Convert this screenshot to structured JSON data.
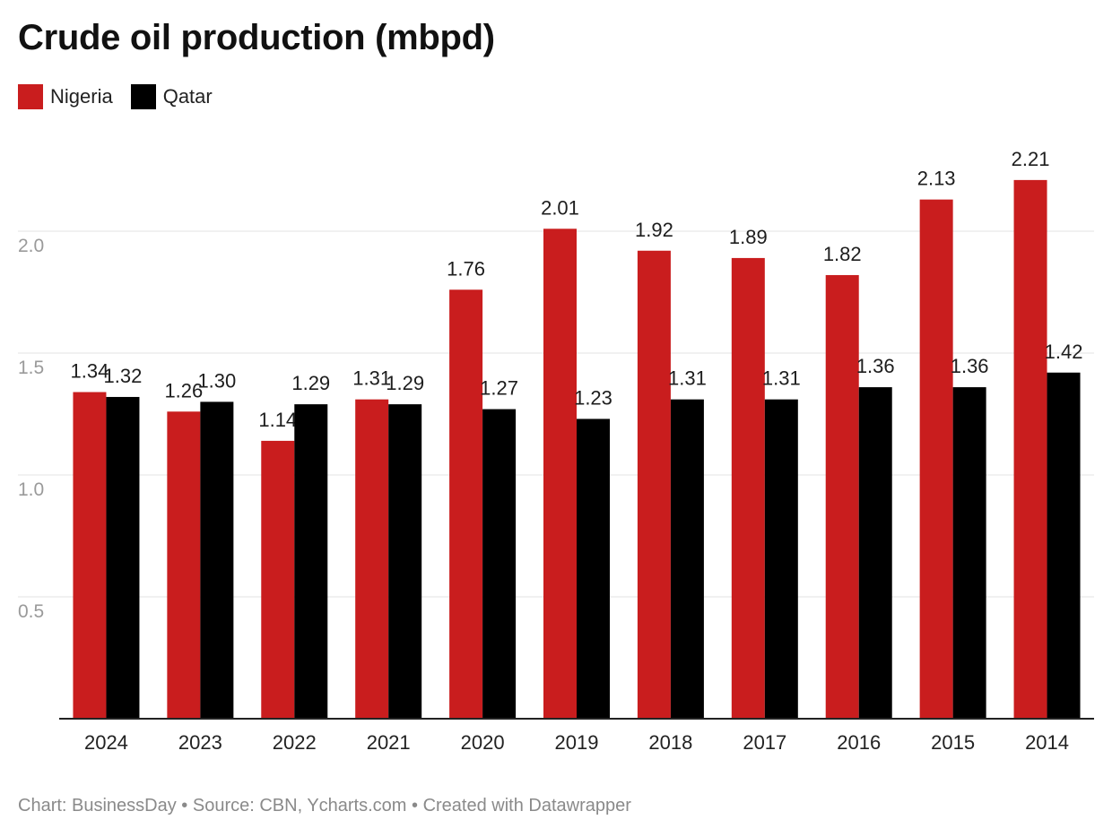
{
  "title": "Crude oil production (mbpd)",
  "legend": [
    {
      "name": "Nigeria",
      "color": "#c91d1e"
    },
    {
      "name": "Qatar",
      "color": "#000000"
    }
  ],
  "footer": "Chart: BusinessDay • Source: CBN, Ycharts.com • Created with Datawrapper",
  "chart_data": {
    "type": "bar",
    "title": "Crude oil production (mbpd)",
    "xlabel": "",
    "ylabel": "",
    "categories": [
      "2024",
      "2023",
      "2022",
      "2021",
      "2020",
      "2019",
      "2018",
      "2017",
      "2016",
      "2015",
      "2014"
    ],
    "series": [
      {
        "name": "Nigeria",
        "color": "#c91d1e",
        "values": [
          1.34,
          1.26,
          1.14,
          1.31,
          1.76,
          2.01,
          1.92,
          1.89,
          1.82,
          2.13,
          2.21
        ]
      },
      {
        "name": "Qatar",
        "color": "#000000",
        "values": [
          1.32,
          1.3,
          1.29,
          1.29,
          1.27,
          1.23,
          1.31,
          1.31,
          1.36,
          1.36,
          1.42
        ]
      }
    ],
    "yticks": [
      0.5,
      1.0,
      1.5,
      2.0
    ],
    "ytick_labels": [
      "0.5",
      "1.0",
      "1.5",
      "2.0"
    ],
    "ylim": [
      0,
      2.21
    ],
    "grid": true,
    "legend_position": "top-left",
    "data_labels": true
  }
}
